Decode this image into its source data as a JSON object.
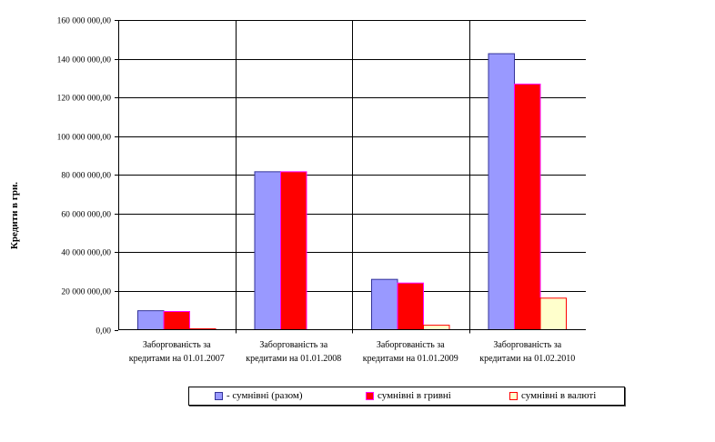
{
  "chart_data": {
    "type": "bar",
    "title": "",
    "xlabel": "",
    "ylabel": "Кредити в грн.",
    "ylim": [
      0,
      160000000
    ],
    "ytick_step": 20000000,
    "ytick_labels": [
      "0,00",
      "20 000 000,00",
      "40 000 000,00",
      "60 000 000,00",
      "80 000 000,00",
      "100 000 000,00",
      "120 000 000,00",
      "140 000 000,00",
      "160 000 000,00"
    ],
    "categories": [
      [
        "Заборгованість за",
        "кредитами на 01.01.2007"
      ],
      [
        "Заборгованість за",
        "кредитами на 01.01.2008"
      ],
      [
        "Заборгованість за",
        "кредитами на 01.01.2009"
      ],
      [
        "Заборгованість за",
        "кредитами на 01.02.2010"
      ]
    ],
    "series": [
      {
        "name": "- сумнівні (разом)",
        "color": "#9999ff",
        "stroke": "#333399",
        "values": [
          9800000,
          81600000,
          26000000,
          142600000
        ]
      },
      {
        "name": "сумнівні в гривні",
        "color": "#ff0000",
        "stroke": "#ff00ff",
        "values": [
          9400000,
          81600000,
          24100000,
          126900000
        ]
      },
      {
        "name": "сумнівні в валюті",
        "color": "#ffffcc",
        "stroke": "#ff0000",
        "values": [
          500000,
          0,
          2300000,
          16300000
        ]
      }
    ],
    "grid": {
      "horizontal": true,
      "vertical_category_separators": true
    },
    "legend_position": "bottom"
  }
}
